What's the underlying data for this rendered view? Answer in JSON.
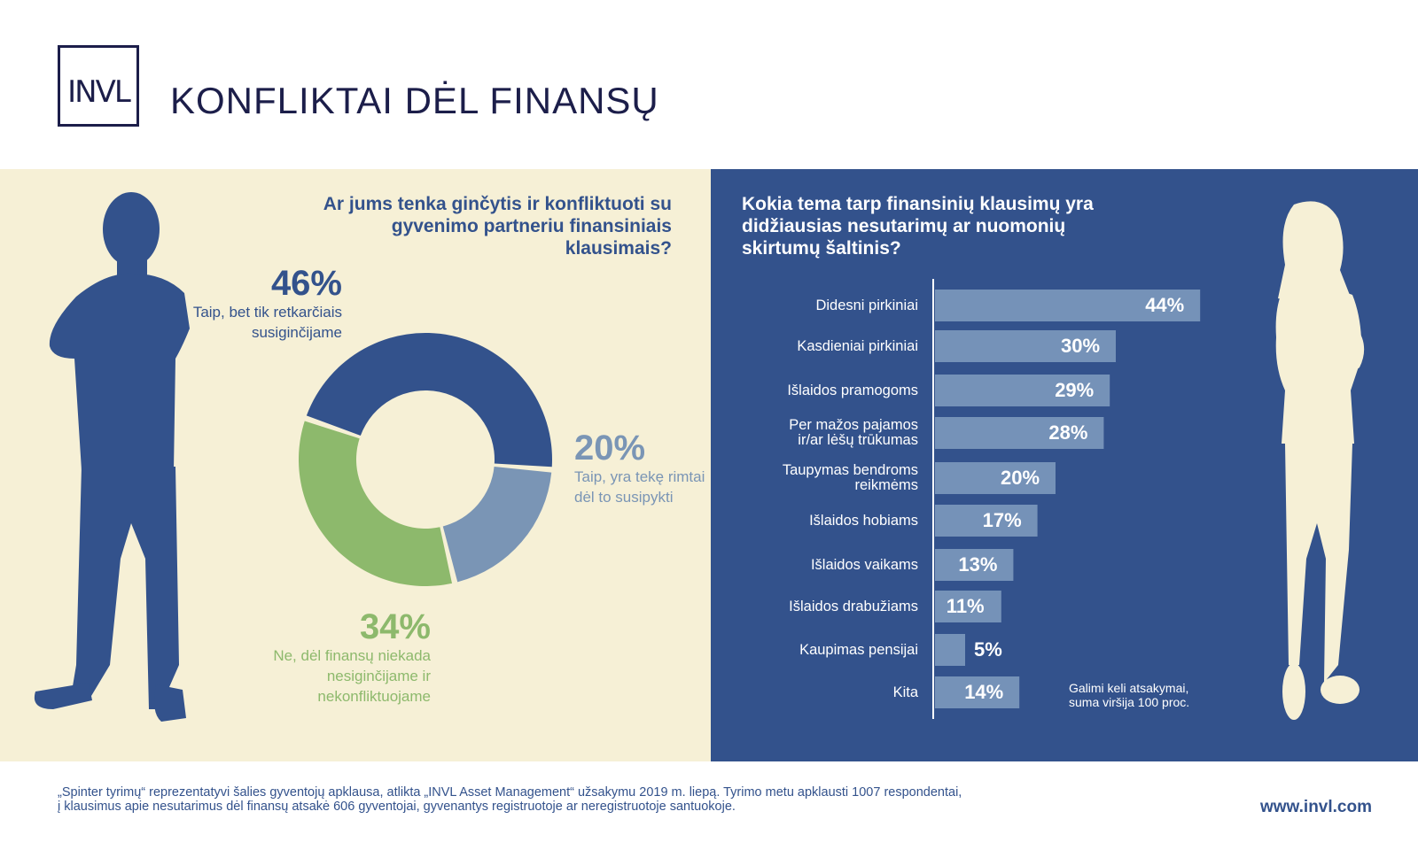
{
  "header": {
    "logo_text": "INVL",
    "title": "KONFLIKTAI DĖL FINANSŲ"
  },
  "colors": {
    "navy": "#33528c",
    "light_blue": "#7a95b5",
    "green": "#8db96c",
    "cream": "#f6f0d6",
    "bar": "#7592b8"
  },
  "left": {
    "question": "Ar jums tenka ginčytis ir konfliktuoti su gyvenimo partneriu finansiniais klausimais?",
    "labels": [
      {
        "pct": "46%",
        "text": "Taip, bet tik retkarčiais susiginčijame"
      },
      {
        "pct": "20%",
        "text": "Taip, yra tekę rimtai dėl to susipykti"
      },
      {
        "pct": "34%",
        "text": "Ne, dėl finansų niekada nesiginčijame ir nekonfliktuojame"
      }
    ]
  },
  "right": {
    "question": "Kokia tema tarp finansinių klausimų yra didžiausias nesutarimų ar nuomonių skirtumų šaltinis?",
    "note": "Galimi keli atsakymai, suma viršija 100 proc."
  },
  "chart_data": [
    {
      "type": "pie",
      "categories": [
        "Taip, bet tik retkarčiais susiginčijame",
        "Taip, yra tekę rimtai dėl to susipykti",
        "Ne, dėl finansų niekada nesiginčijame ir nekonfliktuojame"
      ],
      "values": [
        46,
        20,
        34
      ],
      "colors": [
        "#33528c",
        "#7a95b5",
        "#8db96c"
      ]
    },
    {
      "type": "bar",
      "orientation": "horizontal",
      "categories": [
        "Didesni pirkiniai",
        "Kasdieniai pirkiniai",
        "Išlaidos pramogoms",
        "Per mažos pajamos\nir/ar lėšų trūkumas",
        "Taupymas bendroms\nreikmėms",
        "Išlaidos hobiams",
        "Išlaidos vaikams",
        "Išlaidos drabužiams",
        "Kaupimas pensijai",
        "Kita"
      ],
      "values": [
        44,
        30,
        29,
        28,
        20,
        17,
        13,
        11,
        5,
        14
      ],
      "value_labels": [
        "44%",
        "30%",
        "29%",
        "28%",
        "20%",
        "17%",
        "13%",
        "11%",
        "5%",
        "14%"
      ]
    }
  ],
  "footer": {
    "line1": "„Spinter tyrimų“ reprezentatyvi šalies gyventojų apklausa, atlikta „INVL Asset Management“ užsakymu 2019 m. liepą. Tyrimo metu apklausti 1007 respondentai,",
    "line2": "į klausimus apie nesutarimus dėl finansų atsakė 606 gyventojai, gyvenantys registruotoje ar neregistruotoje santuokoje.",
    "url": "www.invl.com"
  }
}
